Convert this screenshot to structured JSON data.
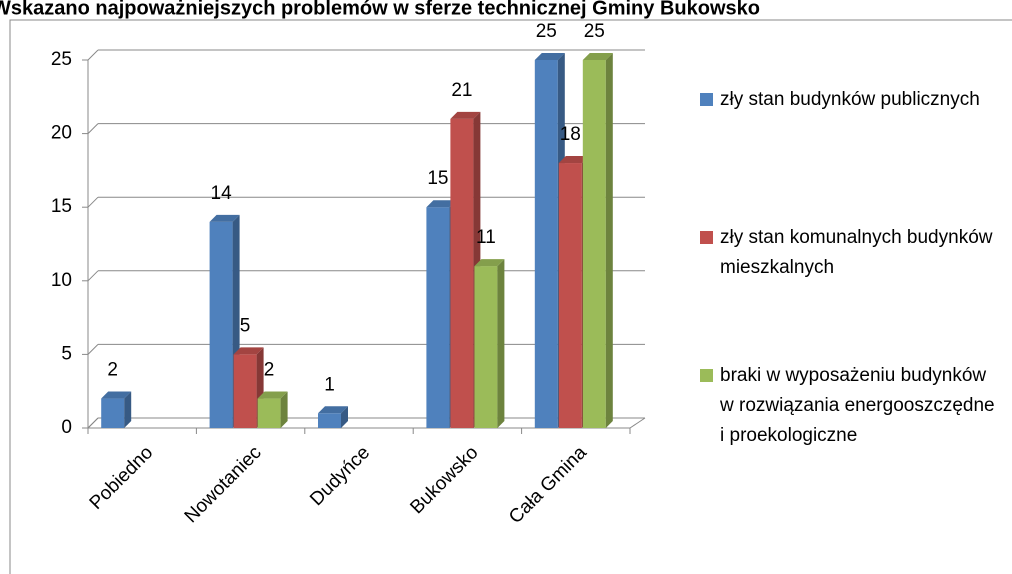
{
  "chart_data": {
    "type": "bar3d",
    "title": "Wskazano najpoważniejszych problemów w sferze technicznej Gminy Bukowsko",
    "categories": [
      "Pobiedno",
      "Nowotaniec",
      "Dudyńce",
      "Bukowsko",
      "Cała Gmina"
    ],
    "series": [
      {
        "name": "zły stan budynków publicznych",
        "color": "#4f81bd",
        "values": [
          2,
          14,
          1,
          15,
          25
        ]
      },
      {
        "name": "zły stan komunalnych budynków mieszkalnych",
        "color": "#c0504d",
        "values": [
          null,
          5,
          null,
          21,
          18
        ]
      },
      {
        "name": "braki w wyposażeniu budynków w rozwiązania energooszczędne i proekologiczne",
        "color": "#9bbb59",
        "values": [
          null,
          2,
          null,
          11,
          25
        ]
      }
    ],
    "ylim": [
      0,
      25
    ],
    "yticks": [
      0,
      5,
      10,
      15,
      20,
      25
    ],
    "grid": true,
    "legend": "right"
  }
}
